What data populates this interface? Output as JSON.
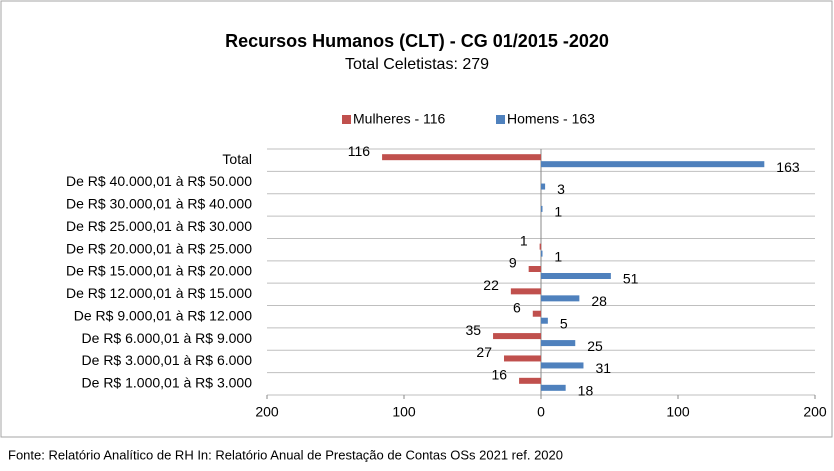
{
  "chart_data": {
    "type": "butterfly-bar",
    "title": "Recursos Humanos (CLT) - CG 01/2015 -2020",
    "subtitle": "Total Celetistas: 279",
    "categories": [
      "Total",
      "De R$ 40.000,01 à R$ 50.000",
      "De R$ 30.000,01 à R$ 40.000",
      "De R$ 25.000,01 à R$ 30.000",
      "De R$ 20.000,01 à R$ 25.000",
      "De R$ 15.000,01 à R$ 20.000",
      "De R$ 12.000,01 à R$ 15.000",
      "De R$ 9.000,01 à R$ 12.000",
      "De R$ 6.000,01 à R$ 9.000",
      "De R$ 3.000,01 à R$ 6.000",
      "De R$ 1.000,01 à R$ 3.000"
    ],
    "series": [
      {
        "name": "Mulheres - 116",
        "color": "#c0504d",
        "side": "left",
        "values": [
          116,
          null,
          null,
          null,
          1,
          9,
          22,
          6,
          35,
          27,
          16
        ]
      },
      {
        "name": "Homens - 163",
        "color": "#4f81bd",
        "side": "right",
        "values": [
          163,
          3,
          1,
          null,
          1,
          51,
          28,
          5,
          25,
          31,
          18
        ]
      }
    ],
    "xlim": [
      -200,
      200
    ],
    "xticks": [
      {
        "value": -200,
        "label": "200"
      },
      {
        "value": -100,
        "label": "100"
      },
      0,
      100,
      200
    ],
    "grid": true,
    "legend": "top",
    "source": "Fonte: Relatório Analítico de RH In: Relatório Anual de Prestação de Contas OSs 2021 ref. 2020"
  }
}
